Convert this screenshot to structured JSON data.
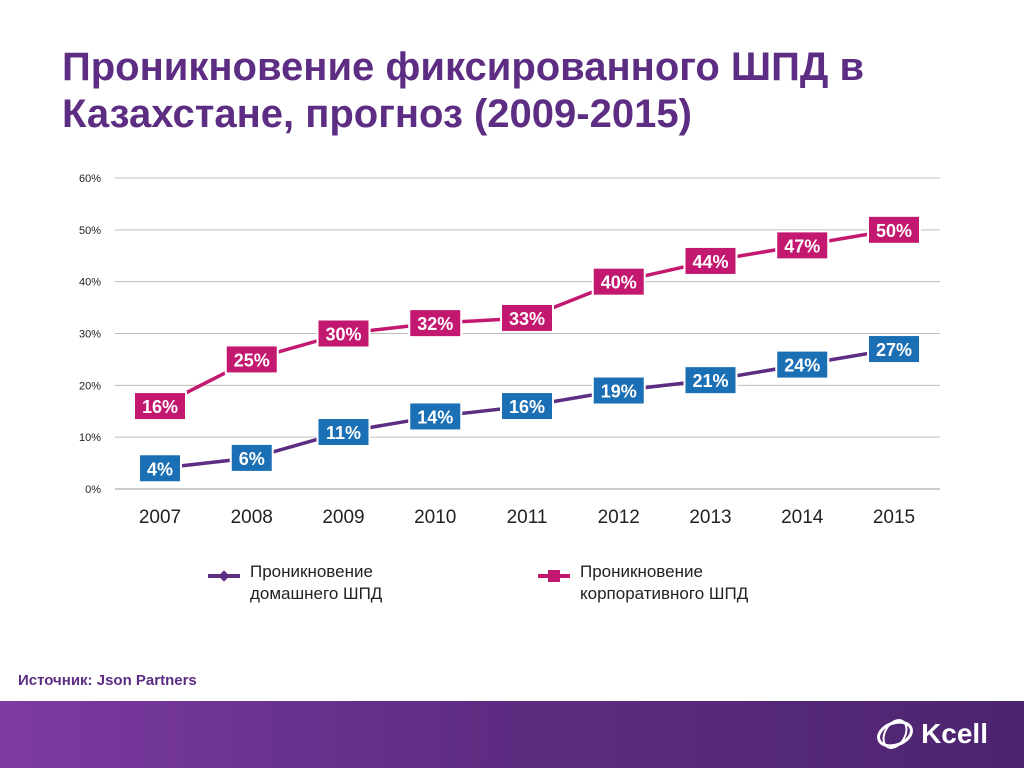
{
  "title": "Проникновение фиксированного ШПД в Казахстане, прогноз (2009-2015)",
  "source": "Источник: Json Partners",
  "logo_text": "Kcell",
  "colors": {
    "home": "#1a6fb5",
    "home_line": "#5c2d82",
    "corporate": "#c3186f",
    "title": "#5c2d82",
    "footer": "#5e2d83"
  },
  "legend": {
    "home_line1": "Проникновение",
    "home_line2": "домашнего ШПД",
    "corp_line1": "Проникновение",
    "corp_line2": "корпоративного ШПД"
  },
  "chart_data": {
    "type": "line",
    "title": "",
    "xlabel": "",
    "ylabel": "",
    "categories": [
      "2007",
      "2008",
      "2009",
      "2010",
      "2011",
      "2012",
      "2013",
      "2014",
      "2015"
    ],
    "ylim": [
      0,
      60
    ],
    "yticks": [
      0,
      10,
      20,
      30,
      40,
      50,
      60
    ],
    "ytick_labels": [
      "0%",
      "10%",
      "20%",
      "30%",
      "40%",
      "50%",
      "60%"
    ],
    "grid": true,
    "legend_position": "bottom",
    "series": [
      {
        "name": "Проникновение домашнего ШПД",
        "values": [
          4,
          6,
          11,
          14,
          16,
          19,
          21,
          24,
          27
        ],
        "labels": [
          "4%",
          "6%",
          "11%",
          "14%",
          "16%",
          "19%",
          "21%",
          "24%",
          "27%"
        ]
      },
      {
        "name": "Проникновение корпоративного ШПД",
        "values": [
          16,
          25,
          30,
          32,
          33,
          40,
          44,
          47,
          50
        ],
        "labels": [
          "16%",
          "25%",
          "30%",
          "32%",
          "33%",
          "40%",
          "44%",
          "47%",
          "50%"
        ]
      }
    ]
  }
}
